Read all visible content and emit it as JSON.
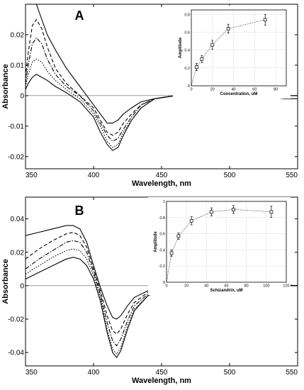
{
  "chart_data": [
    {
      "type": "line",
      "panel_label": "A",
      "xlabel": "Wavelength, nm",
      "ylabel": "Absorbance",
      "xlim": [
        350,
        550
      ],
      "ylim": [
        -0.024,
        0.03
      ],
      "xticks": [
        "350",
        "400",
        "450",
        "500",
        "550"
      ],
      "yticks": [
        "-0.02",
        "-0.01",
        "0",
        "0.01",
        "0.02"
      ],
      "x": [
        350,
        352,
        355,
        358,
        362,
        366,
        372,
        380,
        390,
        400,
        405,
        410,
        414,
        418,
        422,
        428,
        435,
        445,
        460,
        480,
        500,
        520,
        540,
        550
      ],
      "series": [
        {
          "style": "solid",
          "values": [
            0.03,
            0.03,
            0.03,
            0.03,
            0.025,
            0.02,
            0.015,
            0.009,
            0.003,
            -0.003,
            -0.006,
            -0.009,
            -0.009,
            -0.008,
            -0.006,
            -0.004,
            -0.002,
            -0.001,
            0.0,
            0.0,
            0.0,
            0.0,
            -0.001,
            -0.001
          ]
        },
        {
          "style": "dashed",
          "values": [
            0.006,
            0.014,
            0.023,
            0.025,
            0.022,
            0.016,
            0.009,
            0.004,
            0.0,
            -0.004,
            -0.008,
            -0.012,
            -0.013,
            -0.012,
            -0.009,
            -0.006,
            -0.003,
            -0.001,
            0.0,
            0.0,
            0.001,
            0.001,
            0.0,
            0.0
          ]
        },
        {
          "style": "dashdot",
          "values": [
            0.004,
            0.01,
            0.017,
            0.019,
            0.017,
            0.012,
            0.007,
            0.003,
            0.0,
            -0.005,
            -0.009,
            -0.013,
            -0.015,
            -0.014,
            -0.011,
            -0.007,
            -0.003,
            -0.001,
            0.0,
            0.0,
            0.0,
            0.001,
            0.0,
            0.0
          ]
        },
        {
          "style": "dotted",
          "values": [
            0.003,
            0.007,
            0.011,
            0.012,
            0.011,
            0.008,
            0.005,
            0.002,
            -0.001,
            -0.006,
            -0.01,
            -0.015,
            -0.017,
            -0.016,
            -0.012,
            -0.008,
            -0.004,
            -0.001,
            0.0,
            0.0,
            0.0,
            0.001,
            0.0,
            0.0
          ]
        },
        {
          "style": "solid",
          "values": [
            0.002,
            0.004,
            0.006,
            0.007,
            0.006,
            0.005,
            0.003,
            0.001,
            -0.002,
            -0.007,
            -0.012,
            -0.016,
            -0.018,
            -0.017,
            -0.013,
            -0.008,
            -0.004,
            -0.001,
            0.0,
            0.001,
            0.001,
            0.001,
            0.0,
            0.0
          ]
        }
      ],
      "inset": {
        "type": "scatter",
        "xlabel": "Concentration, uM",
        "ylabel": "Amplitude",
        "xlim": [
          0,
          90
        ],
        "ylim": [
          0,
          0.85
        ],
        "xticks": [
          "0",
          "20",
          "40",
          "60",
          "80"
        ],
        "yticks": [
          "0",
          "0.2",
          "0.4",
          "0.6",
          "0.8"
        ],
        "x": [
          5,
          10,
          20,
          35,
          70
        ],
        "values": [
          0.21,
          0.3,
          0.46,
          0.64,
          0.74
        ],
        "errors": [
          0.04,
          0.04,
          0.05,
          0.05,
          0.06
        ]
      }
    },
    {
      "type": "line",
      "panel_label": "B",
      "xlabel": "Wavelength, nm",
      "ylabel": "Absorbance",
      "xlim": [
        350,
        550
      ],
      "ylim": [
        -0.048,
        0.053
      ],
      "xticks": [
        "350",
        "400",
        "450",
        "500",
        "550"
      ],
      "yticks": [
        "-0.04",
        "-0.02",
        "0",
        "0.02",
        "0.04"
      ],
      "x": [
        350,
        360,
        370,
        380,
        385,
        390,
        395,
        400,
        405,
        410,
        414,
        417,
        420,
        425,
        430,
        440,
        450,
        470,
        500,
        530,
        550
      ],
      "series": [
        {
          "style": "solid",
          "values": [
            0.03,
            0.032,
            0.034,
            0.036,
            0.036,
            0.034,
            0.026,
            0.012,
            -0.001,
            -0.012,
            -0.019,
            -0.02,
            -0.018,
            -0.012,
            -0.007,
            -0.003,
            -0.001,
            0.0,
            0.0,
            0.0,
            0.0
          ]
        },
        {
          "style": "dashed",
          "values": [
            0.016,
            0.022,
            0.027,
            0.031,
            0.032,
            0.03,
            0.023,
            0.01,
            -0.003,
            -0.018,
            -0.027,
            -0.029,
            -0.026,
            -0.017,
            -0.01,
            -0.004,
            -0.001,
            0.0,
            0.0,
            0.001,
            0.0
          ]
        },
        {
          "style": "dashdot",
          "values": [
            0.01,
            0.016,
            0.021,
            0.026,
            0.027,
            0.026,
            0.02,
            0.008,
            -0.005,
            -0.022,
            -0.033,
            -0.036,
            -0.032,
            -0.021,
            -0.012,
            -0.005,
            -0.002,
            0.0,
            0.0,
            0.001,
            0.0
          ]
        },
        {
          "style": "dotted",
          "values": [
            0.007,
            0.012,
            0.017,
            0.021,
            0.022,
            0.021,
            0.016,
            0.006,
            -0.007,
            -0.026,
            -0.038,
            -0.041,
            -0.037,
            -0.024,
            -0.014,
            -0.006,
            -0.002,
            0.0,
            0.0,
            0.001,
            0.0
          ]
        },
        {
          "style": "solid",
          "values": [
            0.004,
            0.008,
            0.012,
            0.016,
            0.017,
            0.016,
            0.012,
            0.004,
            -0.009,
            -0.028,
            -0.04,
            -0.043,
            -0.039,
            -0.026,
            -0.015,
            -0.006,
            -0.002,
            0.0,
            0.0,
            0.001,
            0.0
          ]
        }
      ],
      "inset": {
        "type": "scatter",
        "xlabel": "Schizandrin, uM",
        "ylabel": "Amplitude",
        "xlim": [
          0,
          120
        ],
        "ylim": [
          0,
          1.0
        ],
        "xticks": [
          "0",
          "20",
          "40",
          "60",
          "80",
          "100",
          "120"
        ],
        "yticks": [
          "0",
          "0.2",
          "0.4",
          "0.6",
          "0.8",
          "1"
        ],
        "x": [
          5,
          12,
          25,
          45,
          67,
          105
        ],
        "values": [
          0.36,
          0.57,
          0.76,
          0.87,
          0.9,
          0.87
        ],
        "errors": [
          0.04,
          0.04,
          0.05,
          0.05,
          0.05,
          0.07
        ]
      }
    }
  ]
}
